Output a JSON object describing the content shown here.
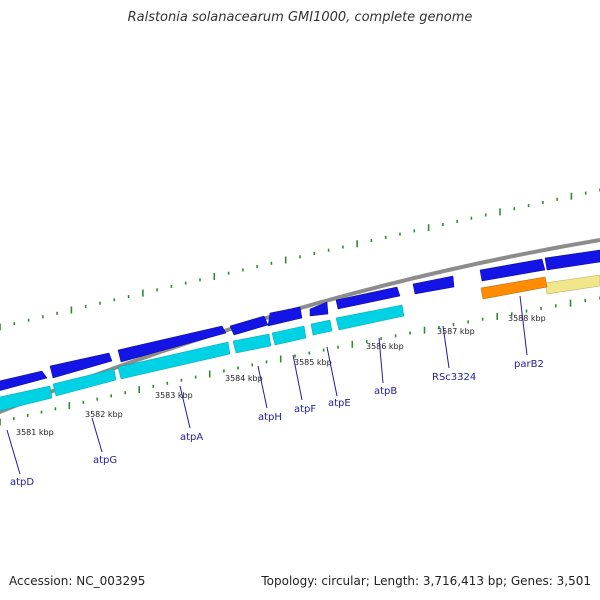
{
  "title": "Ralstonia solanacearum GMI1000, complete genome",
  "footer": {
    "accession": "Accession: NC_003295",
    "stats": "Topology: circular; Length: 3,716,413 bp; Genes: 3,501"
  },
  "colors": {
    "backbone": "#8c8c8c",
    "cds_forward": "#1414e6",
    "cds_forward_shadow": "#00d2e6",
    "other_forward": "#ff8c00",
    "other_forward_shadow": "#f0e68c",
    "tick": "#2e8b2e",
    "gene_label": "#1e1ea0"
  },
  "scale_labels": [
    "3581 kbp",
    "3582 kbp",
    "3583 kbp",
    "3584 kbp",
    "3585 kbp",
    "3586 kbp",
    "3587 kbp",
    "3588 kbp"
  ],
  "genes": [
    {
      "label": "atpD"
    },
    {
      "label": "atpG"
    },
    {
      "label": "atpA"
    },
    {
      "label": "atpH"
    },
    {
      "label": "atpF"
    },
    {
      "label": "atpE"
    },
    {
      "label": "atpB"
    },
    {
      "label": "RSc3324"
    },
    {
      "label": "parB2"
    }
  ]
}
